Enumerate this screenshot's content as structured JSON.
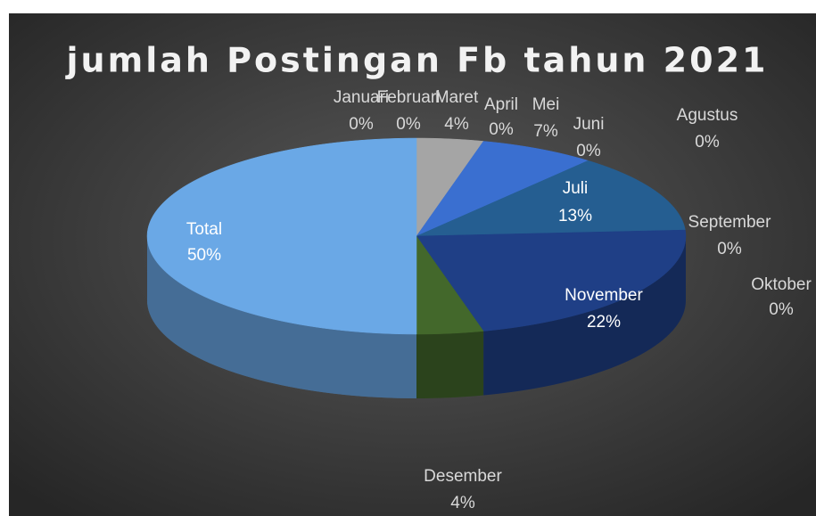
{
  "chart_data": {
    "type": "pie",
    "title": "jumlah Postingan Fb tahun 2021",
    "categories": [
      "Januari",
      "Februari",
      "Maret",
      "April",
      "Mei",
      "Juni",
      "Juli",
      "Agustus",
      "September",
      "Oktober",
      "November",
      "Desember",
      "Total"
    ],
    "values": [
      0,
      0,
      4,
      0,
      7,
      0,
      13,
      0,
      0,
      0,
      22,
      4,
      50
    ],
    "value_labels": [
      "0%",
      "0%",
      "4%",
      "0%",
      "7%",
      "0%",
      "13%",
      "0%",
      "0%",
      "0%",
      "22%",
      "4%",
      "50%"
    ],
    "colors": [
      "#5b9bd5",
      "#ed7d31",
      "#a5a5a5",
      "#ffc000",
      "#3a6fd0",
      "#70ad47",
      "#255e91",
      "#9e480e",
      "#636363",
      "#997300",
      "#1f3f86",
      "#43682b",
      "#6aa8e6"
    ]
  }
}
